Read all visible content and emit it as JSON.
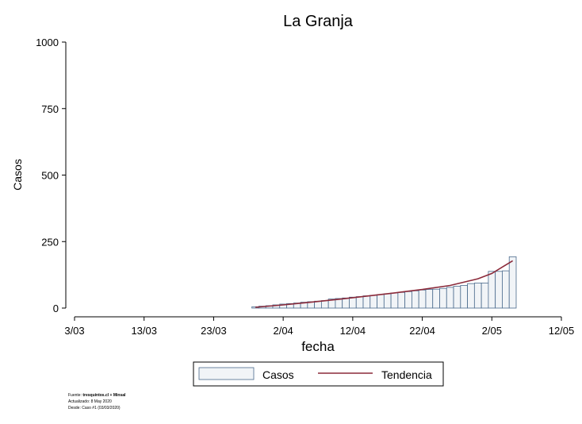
{
  "chart_data": {
    "type": "bar",
    "title": "La Granja",
    "xlabel": "fecha",
    "ylabel": "Casos",
    "ylim": [
      0,
      1000
    ],
    "yticks": [
      0,
      250,
      500,
      750,
      1000
    ],
    "xlim": [
      "2020-03-03",
      "2020-05-12"
    ],
    "xticks": [
      {
        "date": "2020-03-03",
        "label": "3/03"
      },
      {
        "date": "2020-03-13",
        "label": "13/03"
      },
      {
        "date": "2020-03-23",
        "label": "23/03"
      },
      {
        "date": "2020-04-02",
        "label": "2/04"
      },
      {
        "date": "2020-04-12",
        "label": "12/04"
      },
      {
        "date": "2020-04-22",
        "label": "22/04"
      },
      {
        "date": "2020-05-02",
        "label": "2/05"
      },
      {
        "date": "2020-05-12",
        "label": "12/05"
      }
    ],
    "grid": false,
    "legend_position": "bottom",
    "series": [
      {
        "name": "Casos",
        "type": "bar",
        "color": "#f1f4f7",
        "edge_color": "#4a6a8c",
        "x": [
          "2020-03-29",
          "2020-03-30",
          "2020-03-31",
          "2020-04-01",
          "2020-04-02",
          "2020-04-03",
          "2020-04-04",
          "2020-04-05",
          "2020-04-06",
          "2020-04-07",
          "2020-04-08",
          "2020-04-09",
          "2020-04-10",
          "2020-04-11",
          "2020-04-12",
          "2020-04-13",
          "2020-04-14",
          "2020-04-15",
          "2020-04-16",
          "2020-04-17",
          "2020-04-18",
          "2020-04-19",
          "2020-04-20",
          "2020-04-21",
          "2020-04-22",
          "2020-04-23",
          "2020-04-24",
          "2020-04-25",
          "2020-04-26",
          "2020-04-27",
          "2020-04-28",
          "2020-04-29",
          "2020-04-30",
          "2020-05-01",
          "2020-05-02",
          "2020-05-03",
          "2020-05-04",
          "2020-05-05"
        ],
        "values": [
          5,
          7,
          9,
          12,
          15,
          17,
          19,
          22,
          24,
          26,
          28,
          34,
          36,
          38,
          41,
          43,
          46,
          48,
          51,
          54,
          57,
          59,
          62,
          65,
          68,
          70,
          71,
          74,
          78,
          82,
          85,
          92,
          94,
          94,
          138,
          138,
          140,
          193
        ]
      },
      {
        "name": "Tendencia",
        "type": "line",
        "color": "#8b2a3a",
        "x": [
          "2020-03-29",
          "2020-04-02",
          "2020-04-06",
          "2020-04-10",
          "2020-04-14",
          "2020-04-18",
          "2020-04-22",
          "2020-04-26",
          "2020-04-30",
          "2020-05-02",
          "2020-05-05"
        ],
        "values": [
          3,
          12,
          22,
          33,
          45,
          57,
          70,
          85,
          110,
          130,
          178
        ]
      }
    ]
  },
  "footnote": {
    "source_label": "Fuente: ",
    "source_value": "tresquintos.cl + Minsal",
    "updated": "Actualizado: 8 May 2020",
    "since": "Desde: Caso #1  (03/03/2020)"
  }
}
